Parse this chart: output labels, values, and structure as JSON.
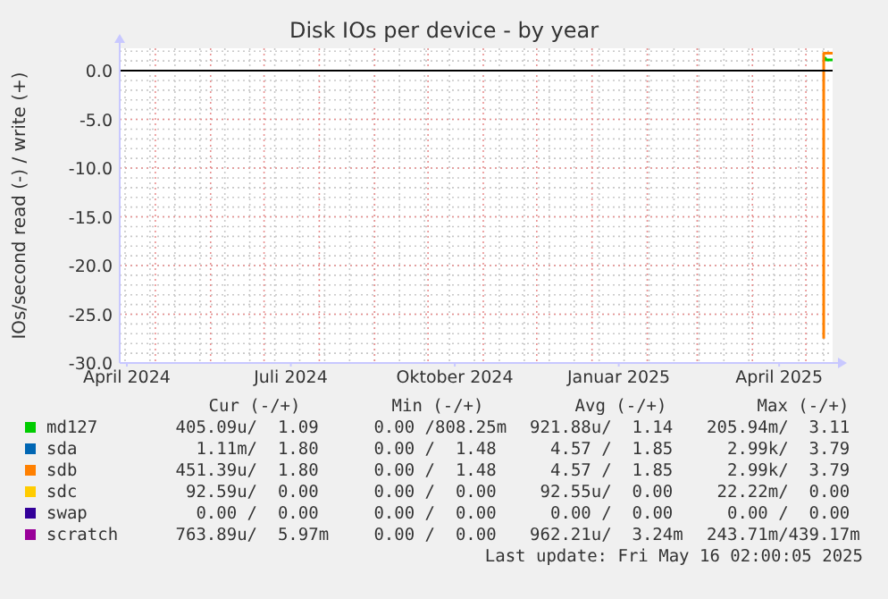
{
  "chart_data": {
    "title": "Disk IOs per device - by year",
    "ylabel": "IOs/second read (-) / write (+)",
    "xlim": [
      "2024-04-11",
      "2025-05-16"
    ],
    "xticks": [
      {
        "value": "2024-04-15",
        "label": "April 2024"
      },
      {
        "value": "2024-07-16",
        "label": "Juli 2024"
      },
      {
        "value": "2024-10-16",
        "label": "Oktober 2024"
      },
      {
        "value": "2025-01-16",
        "label": "Januar 2025"
      },
      {
        "value": "2025-04-16",
        "label": "April 2025"
      }
    ],
    "ylim": [
      -30,
      2.3
    ],
    "yticks": [
      {
        "value": 0,
        "label": "0.0"
      },
      {
        "value": -5,
        "label": "-5.0"
      },
      {
        "value": -10,
        "label": "-10.0"
      },
      {
        "value": -15,
        "label": "-15.0"
      },
      {
        "value": -20,
        "label": "-20.0"
      },
      {
        "value": -25,
        "label": "-25.0"
      },
      {
        "value": -30,
        "label": "-30.0"
      }
    ],
    "type": "line",
    "grid": true,
    "legend": "bottom",
    "ref_lines": [
      {
        "axis": "y",
        "value": 0,
        "color": "#000000"
      }
    ],
    "series": [
      {
        "name": "md127",
        "color": "#00cc00",
        "x": [
          "2025-05-11",
          "2025-05-12",
          "2025-05-12",
          "2025-05-16"
        ],
        "values": [
          1.3,
          1.3,
          1.1,
          1.1
        ]
      },
      {
        "name": "sda",
        "color": "#0066b3",
        "values": [
          null
        ]
      },
      {
        "name": "sdb",
        "color": "#ff8000",
        "x": [
          "2025-05-11",
          "2025-05-11",
          "2025-05-11",
          "2025-05-16"
        ],
        "values": [
          -27.5,
          0,
          1.8,
          1.8
        ]
      },
      {
        "name": "sdc",
        "color": "#ffcc00",
        "values": [
          null
        ]
      },
      {
        "name": "swap",
        "color": "#330099",
        "values": [
          null
        ]
      },
      {
        "name": "scratch",
        "color": "#990099",
        "values": [
          null
        ]
      }
    ],
    "annotations": [
      "Cur (-/+)",
      "Min (-/+)",
      "Avg (-/+)",
      "Max (-/+)",
      "405.09u/  1.09",
      "0.00 /808.25m",
      "921.88u/  1.14",
      "205.94m/  3.11",
      "1.11m/  1.80",
      "0.00 /  1.48",
      "4.57 /  1.85",
      "2.99k/  3.79",
      "451.39u/  1.80",
      "0.00 /  1.48",
      "4.57 /  1.85",
      "2.99k/  3.79",
      "92.59u/  0.00",
      "0.00 /  0.00",
      "92.55u/  0.00",
      "22.22m/  0.00",
      "0.00 /  0.00",
      "0.00 /  0.00",
      "0.00 /  0.00",
      "0.00 /  0.00",
      "763.89u/  5.97m",
      "0.00 /  0.00",
      "962.21u/  3.24m",
      "243.71m/439.17m",
      "Last update: Fri May 16 02:00:05 2025"
    ]
  }
}
